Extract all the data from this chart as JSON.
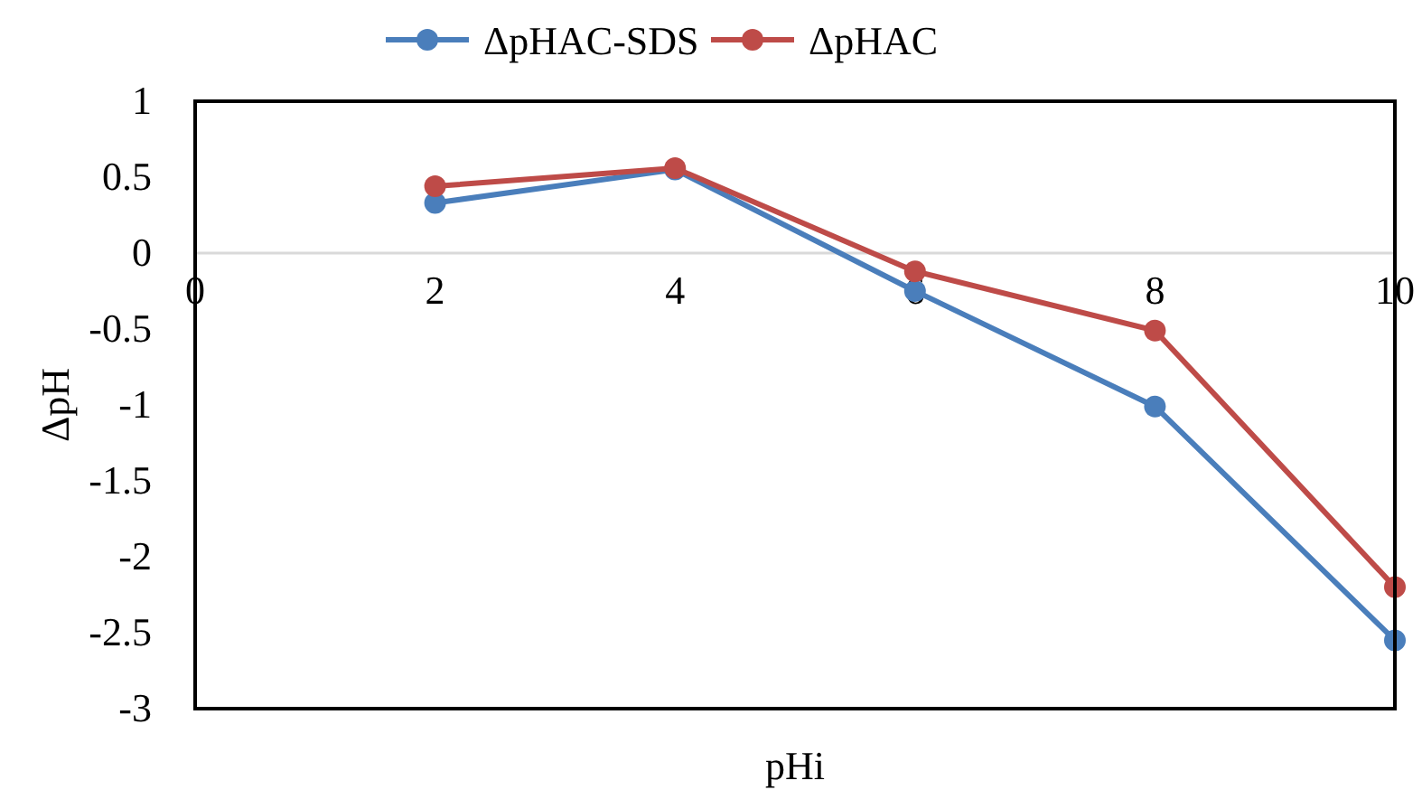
{
  "chart_data": {
    "type": "line",
    "xlabel": "pHi",
    "ylabel": "ΔpH",
    "x": [
      2,
      4,
      6,
      8,
      10
    ],
    "series": [
      {
        "name": "ΔpHAC-SDS",
        "color": "#4a7ebb",
        "values": [
          0.33,
          0.55,
          -0.25,
          -1.01,
          -2.55
        ]
      },
      {
        "name": "ΔpHAC",
        "color": "#be4b48",
        "values": [
          0.44,
          0.56,
          -0.12,
          -0.51,
          -2.2
        ]
      }
    ],
    "xlim": [
      0,
      10
    ],
    "xticks": [
      0,
      2,
      4,
      6,
      8,
      10
    ],
    "ylim": [
      -3,
      1
    ],
    "yticks": [
      {
        "value": -3,
        "label": "-3"
      },
      {
        "value": -2.5,
        "label": "-2.5"
      },
      {
        "value": -2,
        "label": "-2"
      },
      {
        "value": -1.5,
        "label": "-1.5"
      },
      {
        "value": -1,
        "label": "-1"
      },
      {
        "value": -0.5,
        "label": "-0.5"
      },
      0,
      0.5,
      1
    ],
    "grid": false,
    "legend": "top",
    "marker": "circle",
    "line_style": "solid"
  }
}
